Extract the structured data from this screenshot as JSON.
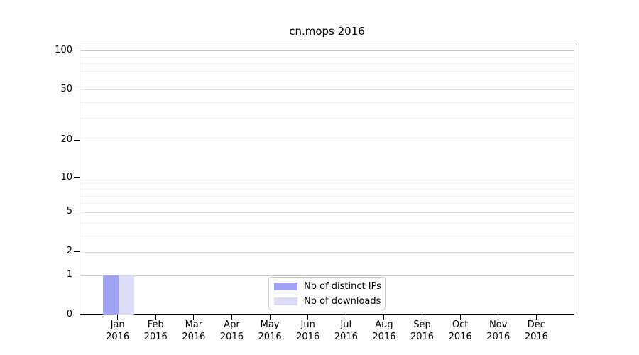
{
  "chart_data": {
    "type": "bar",
    "title": "cn.mops 2016",
    "categories": [
      "Jan 2016",
      "Feb 2016",
      "Mar 2016",
      "Apr 2016",
      "May 2016",
      "Jun 2016",
      "Jul 2016",
      "Aug 2016",
      "Sep 2016",
      "Oct 2016",
      "Nov 2016",
      "Dec 2016"
    ],
    "month_labels": [
      "Jan",
      "Feb",
      "Mar",
      "Apr",
      "May",
      "Jun",
      "Jul",
      "Aug",
      "Sep",
      "Oct",
      "Nov",
      "Dec"
    ],
    "year_label": "2016",
    "series": [
      {
        "name": "Nb of distinct IPs",
        "color": "#a2a2f2",
        "values": [
          1,
          0,
          0,
          0,
          0,
          0,
          0,
          0,
          0,
          0,
          0,
          0
        ]
      },
      {
        "name": "Nb of downloads",
        "color": "#dcdcf9",
        "values": [
          1,
          0,
          0,
          0,
          0,
          0,
          0,
          0,
          0,
          0,
          0,
          0
        ]
      }
    ],
    "yscale": "log1p",
    "ylim": [
      0,
      110
    ],
    "yticks": [
      0,
      1,
      2,
      5,
      10,
      20,
      50,
      100
    ],
    "grid": {
      "on": true,
      "strong_ticks": [
        1,
        10,
        100
      ],
      "mid_ticks": [
        2,
        5,
        20,
        50
      ],
      "minor_ticks": [
        3,
        4,
        6,
        7,
        8,
        9,
        30,
        40,
        60,
        70,
        80,
        90
      ],
      "strong_color": "#c8c8c8",
      "mid_color": "#e2e2e2",
      "minor_color": "#efefef"
    },
    "legend_position": "lower center",
    "axis_color": "#000000",
    "text_color": "#000000",
    "xlabel": "",
    "ylabel": ""
  }
}
